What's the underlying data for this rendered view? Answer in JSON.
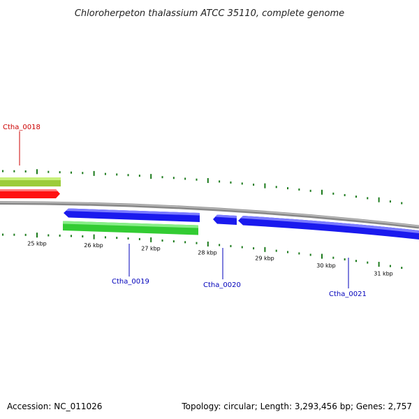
{
  "title": "Chloroherpeton thalassium ATCC 35110, complete genome",
  "footer": {
    "accession_prefix": "Accession:",
    "accession": "NC_011026",
    "topology_label": "Topology:",
    "topology": "circular",
    "length_label": "Length:",
    "length": "3,293,456 bp",
    "genes_label": "Genes:",
    "genes": "2,757"
  },
  "colors": {
    "forward_red": "#ff1111",
    "forward_green": "#9ccc3a",
    "reverse_blue": "#1a1aee",
    "reverse_green": "#33cc33",
    "tick": "#1b7a1b",
    "backbone": "#8a8a8a",
    "label_red": "#cc0000",
    "label_blue": "#0000bb"
  },
  "ticks": [
    {
      "kbp": 25,
      "label": "25 kbp"
    },
    {
      "kbp": 26,
      "label": "26 kbp"
    },
    {
      "kbp": 27,
      "label": "27 kbp"
    },
    {
      "kbp": 28,
      "label": "28 kbp"
    },
    {
      "kbp": 29,
      "label": "29 kbp"
    },
    {
      "kbp": 30,
      "label": "30 kbp"
    },
    {
      "kbp": 31,
      "label": "31 kbp"
    }
  ],
  "genes": [
    {
      "name": "Ctha_0018",
      "strand": "+"
    },
    {
      "name": "Ctha_0019",
      "strand": "-"
    },
    {
      "name": "Ctha_0020",
      "strand": "-"
    },
    {
      "name": "Ctha_0021",
      "strand": "-"
    }
  ]
}
